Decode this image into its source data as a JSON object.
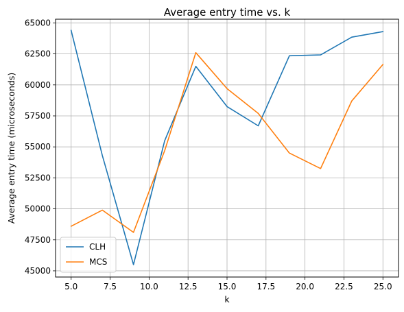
{
  "chart_data": {
    "type": "line",
    "title": "Average entry time vs. k",
    "xlabel": "k",
    "ylabel": "Average entry time (microseconds)",
    "x": [
      5,
      7,
      9,
      11,
      13,
      15,
      17,
      19,
      21,
      23,
      25
    ],
    "series": [
      {
        "name": "CLH",
        "color": "#1f77b4",
        "values": [
          64400,
          54300,
          45500,
          55500,
          61500,
          58250,
          56700,
          62350,
          62420,
          63850,
          64300
        ]
      },
      {
        "name": "MCS",
        "color": "#ff7f0e",
        "values": [
          48600,
          49900,
          48100,
          54700,
          62600,
          59700,
          57700,
          54500,
          53250,
          58700,
          61650
        ]
      }
    ],
    "xlim": [
      4.0,
      26.0
    ],
    "ylim": [
      44500,
      65300
    ],
    "x_ticks": [
      "5.0",
      "7.5",
      "10.0",
      "12.5",
      "15.0",
      "17.5",
      "20.0",
      "22.5",
      "25.0"
    ],
    "y_ticks": [
      "45000",
      "47500",
      "50000",
      "52500",
      "55000",
      "57500",
      "60000",
      "62500",
      "65000"
    ],
    "grid": true,
    "legend_position": "lower-left"
  }
}
